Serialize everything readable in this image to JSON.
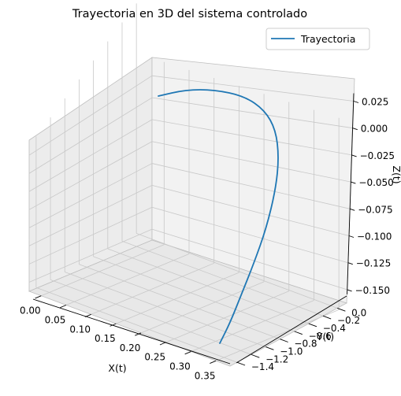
{
  "chart_data": {
    "type": "line3d",
    "title": "Trayectoria en 3D del sistema controlado",
    "xlabel": "X(t)",
    "ylabel": "Y(t)",
    "zlabel": "Z(t)",
    "x_ticks": [
      "0.00",
      "0.05",
      "0.10",
      "0.15",
      "0.20",
      "0.25",
      "0.30",
      "0.35"
    ],
    "y_ticks": [
      "0.0",
      "−0.2",
      "−0.4",
      "−0.6",
      "−0.8",
      "−1.0",
      "−1.2",
      "−1.4"
    ],
    "z_ticks": [
      "0.025",
      "0.000",
      "−0.025",
      "−0.050",
      "−0.075",
      "−0.100",
      "−0.125",
      "−0.150"
    ],
    "legend": {
      "position": "top-right",
      "entries": [
        {
          "label": "Trayectoria",
          "color": "#1f77b4"
        }
      ]
    },
    "grid": true,
    "series": [
      {
        "name": "Trayectoria",
        "color": "#1f77b4",
        "points": [
          {
            "x": 0.0,
            "y": 0.0,
            "z": 0.0
          },
          {
            "x": 0.035,
            "y": -0.35,
            "z": -0.02
          },
          {
            "x": 0.07,
            "y": -0.65,
            "z": -0.04
          },
          {
            "x": 0.1,
            "y": -0.9,
            "z": -0.06
          },
          {
            "x": 0.13,
            "y": -1.08,
            "z": -0.08
          },
          {
            "x": 0.155,
            "y": -1.2,
            "z": -0.095
          },
          {
            "x": 0.18,
            "y": -1.26,
            "z": -0.11
          },
          {
            "x": 0.2,
            "y": -1.3,
            "z": -0.12
          },
          {
            "x": 0.22,
            "y": -1.31,
            "z": -0.13
          },
          {
            "x": 0.25,
            "y": -1.31,
            "z": -0.14
          },
          {
            "x": 0.28,
            "y": -1.3,
            "z": -0.15
          },
          {
            "x": 0.31,
            "y": -1.3,
            "z": -0.155
          },
          {
            "x": 0.34,
            "y": -1.29,
            "z": -0.16
          }
        ]
      }
    ]
  }
}
